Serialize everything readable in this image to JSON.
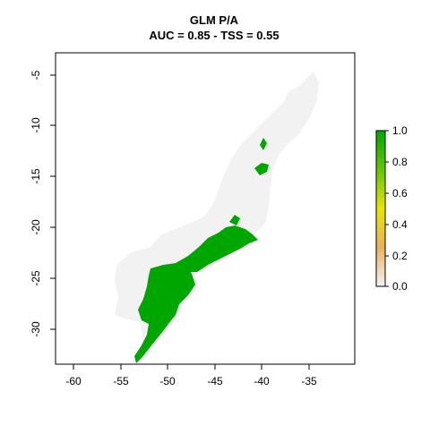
{
  "title": "GLM P/A",
  "subtitle": "AUC = 0.85 - TSS = 0.55",
  "x_axis": {
    "ticks": [
      "-60",
      "-55",
      "-50",
      "-45",
      "-40",
      "-35"
    ]
  },
  "y_axis": {
    "ticks": [
      "-5",
      "-10",
      "-15",
      "-20",
      "-25",
      "-30"
    ]
  },
  "legend": {
    "ticks": [
      "1.0",
      "0.8",
      "0.6",
      "0.4",
      "0.2",
      "0.0"
    ],
    "colors": {
      "top": "#00a600",
      "upper": "#63c600",
      "middle": "#e6e600",
      "lower": "#ebb25e",
      "bottom": "#f2f2f2"
    }
  },
  "map_colors": {
    "background_region": "#f2f2f2",
    "presence": "#00a600",
    "frame": "#000000"
  }
}
